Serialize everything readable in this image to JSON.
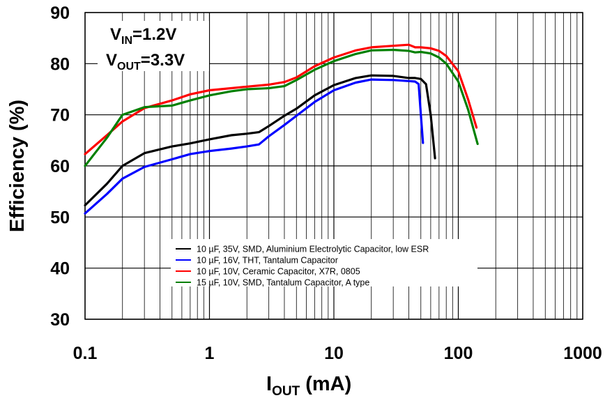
{
  "chart_data": {
    "type": "line",
    "x_scale": "log",
    "xlim": [
      0.1,
      1000
    ],
    "ylim": [
      30,
      90
    ],
    "grid": true,
    "legend_position": "bottom-center inside plot",
    "xlabel": {
      "main": "I",
      "sub": "OUT",
      "rest": " (mA)"
    },
    "ylabel": "Efficiency (%)",
    "x_ticks": [
      {
        "value": 0.1,
        "label": "0.1"
      },
      {
        "value": 1,
        "label": "1"
      },
      {
        "value": 10,
        "label": "10"
      },
      {
        "value": 100,
        "label": "100"
      },
      {
        "value": 1000,
        "label": "1000"
      }
    ],
    "y_ticks": [
      {
        "value": 30,
        "label": "30"
      },
      {
        "value": 40,
        "label": "40"
      },
      {
        "value": 50,
        "label": "50"
      },
      {
        "value": 60,
        "label": "60"
      },
      {
        "value": 70,
        "label": "70"
      },
      {
        "value": 80,
        "label": "80"
      },
      {
        "value": 90,
        "label": "90"
      }
    ],
    "annotations": [
      {
        "main": "V",
        "sub": "IN",
        "rest": "=1.2V"
      },
      {
        "main": "V",
        "sub": "OUT",
        "rest": "=3.3V"
      }
    ],
    "series": [
      {
        "name": "10 µF, 35V, SMD, Aluminium Electrolytic Capacitor, low ESR",
        "color": "#000000",
        "points": [
          [
            0.1,
            52.3
          ],
          [
            0.15,
            56.5
          ],
          [
            0.2,
            60.0
          ],
          [
            0.3,
            62.5
          ],
          [
            0.5,
            63.8
          ],
          [
            0.7,
            64.4
          ],
          [
            1,
            65.2
          ],
          [
            1.5,
            66.0
          ],
          [
            2,
            66.3
          ],
          [
            2.5,
            66.6
          ],
          [
            3,
            67.8
          ],
          [
            4,
            69.8
          ],
          [
            5,
            71.2
          ],
          [
            7,
            73.8
          ],
          [
            10,
            75.8
          ],
          [
            15,
            77.2
          ],
          [
            20,
            77.7
          ],
          [
            30,
            77.6
          ],
          [
            40,
            77.2
          ],
          [
            45,
            77.2
          ],
          [
            50,
            77.0
          ],
          [
            55,
            76.0
          ],
          [
            60,
            70.0
          ],
          [
            65,
            61.5
          ]
        ]
      },
      {
        "name": "10 µF, 16V, THT, Tantalum Capacitor",
        "color": "#0000ff",
        "points": [
          [
            0.1,
            50.7
          ],
          [
            0.15,
            54.5
          ],
          [
            0.2,
            57.5
          ],
          [
            0.3,
            59.8
          ],
          [
            0.5,
            61.3
          ],
          [
            0.7,
            62.3
          ],
          [
            1,
            62.9
          ],
          [
            1.5,
            63.4
          ],
          [
            2,
            63.8
          ],
          [
            2.5,
            64.2
          ],
          [
            3,
            65.8
          ],
          [
            4,
            68.0
          ],
          [
            5,
            69.8
          ],
          [
            7,
            72.5
          ],
          [
            10,
            74.8
          ],
          [
            15,
            76.3
          ],
          [
            20,
            76.9
          ],
          [
            30,
            76.8
          ],
          [
            40,
            76.6
          ],
          [
            45,
            76.5
          ],
          [
            48,
            76.0
          ],
          [
            50,
            70.0
          ],
          [
            52,
            64.5
          ]
        ]
      },
      {
        "name": "10 µF, 10V, Ceramic Capacitor, X7R, 0805",
        "color": "#ff0000",
        "points": [
          [
            0.1,
            62.3
          ],
          [
            0.15,
            66.0
          ],
          [
            0.2,
            68.7
          ],
          [
            0.3,
            71.3
          ],
          [
            0.5,
            72.8
          ],
          [
            0.7,
            74.0
          ],
          [
            1,
            74.8
          ],
          [
            1.5,
            75.2
          ],
          [
            2,
            75.5
          ],
          [
            3,
            75.9
          ],
          [
            4,
            76.4
          ],
          [
            5,
            77.3
          ],
          [
            7,
            79.5
          ],
          [
            10,
            81.2
          ],
          [
            15,
            82.6
          ],
          [
            20,
            83.2
          ],
          [
            30,
            83.5
          ],
          [
            40,
            83.7
          ],
          [
            45,
            83.2
          ],
          [
            50,
            83.2
          ],
          [
            60,
            83.0
          ],
          [
            70,
            82.5
          ],
          [
            80,
            81.5
          ],
          [
            100,
            78.5
          ],
          [
            120,
            73.0
          ],
          [
            140,
            67.5
          ]
        ]
      },
      {
        "name": "15 µF, 10V, SMD, Tantalum Capacitor, A type",
        "color": "#008000",
        "points": [
          [
            0.1,
            60.0
          ],
          [
            0.15,
            65.5
          ],
          [
            0.2,
            70.0
          ],
          [
            0.3,
            71.5
          ],
          [
            0.5,
            71.8
          ],
          [
            0.7,
            72.8
          ],
          [
            1,
            73.8
          ],
          [
            1.5,
            74.6
          ],
          [
            2,
            75.0
          ],
          [
            3,
            75.2
          ],
          [
            4,
            75.6
          ],
          [
            5,
            76.8
          ],
          [
            7,
            78.8
          ],
          [
            10,
            80.5
          ],
          [
            15,
            81.9
          ],
          [
            20,
            82.6
          ],
          [
            30,
            82.7
          ],
          [
            40,
            82.5
          ],
          [
            45,
            82.2
          ],
          [
            50,
            82.3
          ],
          [
            60,
            82.0
          ],
          [
            70,
            81.2
          ],
          [
            80,
            80.0
          ],
          [
            100,
            76.5
          ],
          [
            120,
            71.0
          ],
          [
            143,
            64.3
          ]
        ]
      }
    ]
  }
}
